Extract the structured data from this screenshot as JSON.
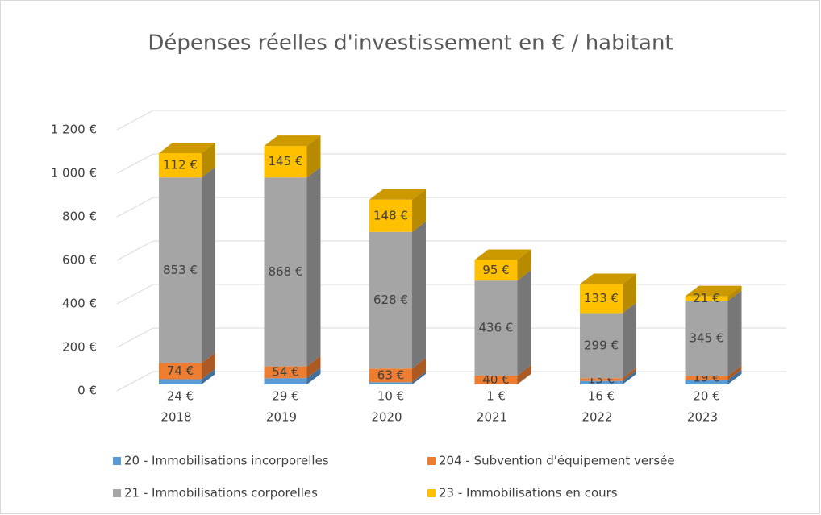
{
  "chart_data": {
    "type": "bar3d_stacked",
    "title": "Dépenses réelles d'investissement en € / habitant",
    "categories": [
      "2018",
      "2019",
      "2020",
      "2021",
      "2022",
      "2023"
    ],
    "series": [
      {
        "name": "20 - Immobilisations incorporelles",
        "color": "#5B9BD5",
        "values": [
          24,
          29,
          10,
          1,
          16,
          20
        ],
        "value_labels": [
          "24 €",
          "29 €",
          "10 €",
          "1 €",
          "16 €",
          "20 €"
        ]
      },
      {
        "name": "204 - Subvention d'équipement versée",
        "color": "#ED7D31",
        "values": [
          74,
          54,
          63,
          40,
          13,
          19
        ],
        "value_labels": [
          "74 €",
          "54 €",
          "63 €",
          "40 €",
          "13 €",
          "19 €"
        ]
      },
      {
        "name": "21 - Immobilisations corporelles",
        "color": "#A5A5A5",
        "values": [
          853,
          868,
          628,
          436,
          299,
          345
        ],
        "value_labels": [
          "853 €",
          "868 €",
          "628 €",
          "436 €",
          "299 €",
          "345 €"
        ]
      },
      {
        "name": "23 - Immobilisations en cours",
        "color": "#FFC000",
        "values": [
          112,
          145,
          148,
          95,
          133,
          21
        ],
        "value_labels": [
          "112 €",
          "145 €",
          "148 €",
          "95 €",
          "133 €",
          "21 €"
        ]
      }
    ],
    "ylim": [
      0,
      1200
    ],
    "yticks": [
      {
        "value": 0,
        "label": "0 €"
      },
      {
        "value": 200,
        "label": "200 €"
      },
      {
        "value": 400,
        "label": "400 €"
      },
      {
        "value": 600,
        "label": "600 €"
      },
      {
        "value": 800,
        "label": "800 €"
      },
      {
        "value": 1000,
        "label": "1 000 €"
      },
      {
        "value": 1200,
        "label": "1 200 €"
      }
    ],
    "grid": true
  }
}
